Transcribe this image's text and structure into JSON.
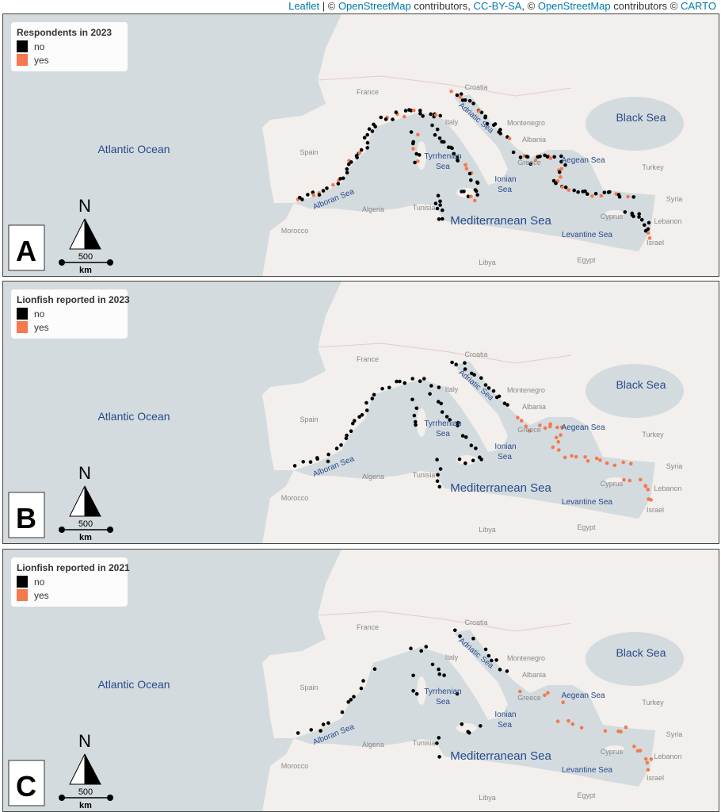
{
  "attribution": [
    {
      "text": "Leaflet",
      "link": true
    },
    {
      "text": " | © "
    },
    {
      "text": "OpenStreetMap",
      "link": true
    },
    {
      "text": " contributors, "
    },
    {
      "text": "CC-BY-SA",
      "link": true
    },
    {
      "text": ", © "
    },
    {
      "text": "OpenStreetMap",
      "link": true
    },
    {
      "text": " contributors © "
    },
    {
      "text": "CARTO",
      "link": true
    }
  ],
  "north": "N",
  "scale": {
    "value": 500,
    "unit": "km"
  },
  "sea_labels": [
    "Atlantic Ocean",
    "Black Sea",
    "Mediterranean Sea",
    "Tyrrhenian",
    "Sea",
    "Ionian",
    "Sea",
    "Aegean Sea",
    "Adriatic Sea",
    "Alboran Sea",
    "Levantine Sea"
  ],
  "country_labels": [
    "France",
    "Spain",
    "Italy",
    "Croatia",
    "Montenegro",
    "Albania",
    "Greece",
    "Turkey",
    "Syria",
    "Cyprus",
    "Lebanon",
    "Israel",
    "Egypt",
    "Libya",
    "Tunisia",
    "Algeria",
    "Morocco"
  ],
  "panels": [
    {
      "letter": "A",
      "legend": {
        "title": "Respondents in 2023",
        "items": [
          {
            "label": "no",
            "color": "#000000"
          },
          {
            "label": "yes",
            "color": "#f4794e"
          }
        ]
      }
    },
    {
      "letter": "B",
      "legend": {
        "title": "Lionfish reported in 2023",
        "items": [
          {
            "label": "no",
            "color": "#000000"
          },
          {
            "label": "yes",
            "color": "#f4794e"
          }
        ]
      }
    },
    {
      "letter": "C",
      "legend": {
        "title": "Lionfish reported in 2021",
        "items": [
          {
            "label": "no",
            "color": "#000000"
          },
          {
            "label": "yes",
            "color": "#f4794e"
          }
        ]
      }
    }
  ]
}
